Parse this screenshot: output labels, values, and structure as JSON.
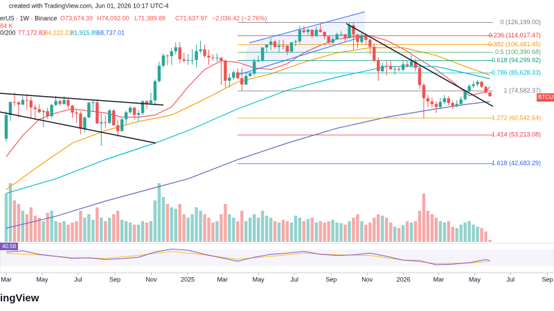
{
  "header": {
    "source_line": "created with TradingView.com, Jun 01, 2026 10:17 UTC-4",
    "symbol": "erUS · 1W · Binance",
    "ohlc": [
      "O73,674.39",
      "H74,092.00",
      "L71,389.88",
      "C71,637.97",
      "−2,036.42 (−2.76%)"
    ],
    "volume": "84 K",
    "ma_label": "0/200",
    "ma_values": [
      "77,172.83",
      "84,222.22",
      "81,915.89",
      "68,737.01"
    ],
    "price_tag": "BTCUSD",
    "logo": "ingView"
  },
  "chart_data": {
    "type": "candlestick",
    "log_scale": true,
    "ylim": [
      23400,
      150000
    ],
    "xlim": [
      -1.5,
      132.5
    ],
    "up_color": "#26a69a",
    "down_color": "#ef5350",
    "xticks": [
      {
        "value": 0,
        "label": "Mar"
      },
      {
        "value": 8.7,
        "label": "May"
      },
      {
        "value": 17.4,
        "label": "Jul"
      },
      {
        "value": 26.3,
        "label": "Sep"
      },
      {
        "value": 35.1,
        "label": "Nov"
      },
      {
        "value": 43.9,
        "label": "2025"
      },
      {
        "value": 52.3,
        "label": "Mar"
      },
      {
        "value": 61,
        "label": "May"
      },
      {
        "value": 69.7,
        "label": "Jul"
      },
      {
        "value": 78.6,
        "label": "Sep"
      },
      {
        "value": 87.3,
        "label": "Nov"
      },
      {
        "value": 96.1,
        "label": "2026"
      },
      {
        "value": 104.6,
        "label": "Mar"
      },
      {
        "value": 113.3,
        "label": "May"
      },
      {
        "value": 122,
        "label": "Jul"
      },
      {
        "value": 130.9,
        "label": "Sep"
      }
    ],
    "candles": [
      [
        51700,
        63900,
        50500,
        62000
      ],
      [
        62000,
        69000,
        59200,
        68500
      ],
      [
        68500,
        73800,
        66500,
        68400
      ],
      [
        68400,
        68900,
        60800,
        67200
      ],
      [
        67200,
        71500,
        66800,
        69600
      ],
      [
        69600,
        72700,
        64500,
        69400
      ],
      [
        69400,
        71300,
        60700,
        65700
      ],
      [
        65700,
        67200,
        59600,
        64900
      ],
      [
        64900,
        67300,
        62800,
        63400
      ],
      [
        63400,
        64700,
        56500,
        63900
      ],
      [
        63900,
        65500,
        60200,
        61500
      ],
      [
        61500,
        67500,
        60600,
        67000
      ],
      [
        67000,
        71900,
        66300,
        69000
      ],
      [
        69000,
        70000,
        66600,
        67500
      ],
      [
        67500,
        71900,
        67200,
        69600
      ],
      [
        69600,
        70200,
        65100,
        66700
      ],
      [
        66700,
        66900,
        60800,
        63200
      ],
      [
        63200,
        64300,
        58400,
        62700
      ],
      [
        62700,
        63800,
        53500,
        55800
      ],
      [
        55800,
        61400,
        54300,
        60800
      ],
      [
        60800,
        68300,
        60600,
        68200
      ],
      [
        68200,
        69400,
        63500,
        68300
      ],
      [
        68300,
        70000,
        58000,
        58100
      ],
      [
        58100,
        62700,
        49000,
        58700
      ],
      [
        58700,
        61800,
        56100,
        58400
      ],
      [
        58400,
        65000,
        57800,
        64200
      ],
      [
        64200,
        64900,
        57200,
        57300
      ],
      [
        57300,
        59800,
        52500,
        54800
      ],
      [
        54800,
        60600,
        54600,
        60000
      ],
      [
        60000,
        64100,
        57500,
        63300
      ],
      [
        63300,
        66500,
        62700,
        65600
      ],
      [
        65600,
        66000,
        59800,
        62100
      ],
      [
        62100,
        64400,
        58900,
        62900
      ],
      [
        62900,
        69400,
        62000,
        68900
      ],
      [
        68900,
        69500,
        65000,
        67900
      ],
      [
        67900,
        73600,
        67500,
        69400
      ],
      [
        69400,
        81500,
        66800,
        80400
      ],
      [
        80400,
        93500,
        79600,
        90500
      ],
      [
        90500,
        99600,
        89400,
        97900
      ],
      [
        97900,
        98800,
        90800,
        97500
      ],
      [
        97500,
        104000,
        91000,
        101200
      ],
      [
        101200,
        108300,
        98800,
        104300
      ],
      [
        104300,
        108400,
        92200,
        95200
      ],
      [
        95200,
        99900,
        92500,
        94100
      ],
      [
        94100,
        98900,
        91200,
        94500
      ],
      [
        94500,
        102700,
        91200,
        94600
      ],
      [
        94600,
        106400,
        89300,
        101300
      ],
      [
        101300,
        109600,
        99500,
        102600
      ],
      [
        102600,
        106400,
        96100,
        97700
      ],
      [
        97700,
        102500,
        91200,
        96500
      ],
      [
        96500,
        98800,
        94100,
        96100
      ],
      [
        96100,
        99500,
        93400,
        96300
      ],
      [
        96300,
        96500,
        78200,
        94200
      ],
      [
        94200,
        95000,
        76600,
        80700
      ],
      [
        80700,
        85300,
        76600,
        82600
      ],
      [
        82600,
        87500,
        81200,
        86100
      ],
      [
        86100,
        88700,
        81600,
        82300
      ],
      [
        82300,
        88500,
        74500,
        78400
      ],
      [
        78400,
        86100,
        78200,
        83700
      ],
      [
        83700,
        86400,
        83100,
        85200
      ],
      [
        85200,
        95700,
        83900,
        93700
      ],
      [
        93700,
        97900,
        92800,
        94300
      ],
      [
        94300,
        104300,
        93400,
        104200
      ],
      [
        104200,
        106700,
        100700,
        106500
      ],
      [
        106500,
        111900,
        102000,
        109000
      ],
      [
        109000,
        110700,
        103100,
        104600
      ],
      [
        104600,
        110500,
        100400,
        105700
      ],
      [
        105700,
        110600,
        102700,
        105600
      ],
      [
        105600,
        106100,
        98200,
        100900
      ],
      [
        100900,
        108500,
        100900,
        108400
      ],
      [
        108400,
        110500,
        105100,
        109200
      ],
      [
        109200,
        123200,
        107500,
        119100
      ],
      [
        119100,
        123000,
        115700,
        117300
      ],
      [
        117300,
        120300,
        114700,
        119400
      ],
      [
        119400,
        119800,
        112000,
        114200
      ],
      [
        114200,
        122300,
        112700,
        119300
      ],
      [
        119300,
        124500,
        116800,
        117400
      ],
      [
        117400,
        117700,
        110600,
        113500
      ],
      [
        113500,
        113600,
        107300,
        108200
      ],
      [
        108200,
        113400,
        107200,
        111100
      ],
      [
        111100,
        116700,
        110600,
        115300
      ],
      [
        115300,
        117900,
        114400,
        115300
      ],
      [
        115300,
        115400,
        108600,
        112200
      ],
      [
        112200,
        125700,
        111500,
        123500
      ],
      [
        123500,
        126200,
        102000,
        115100
      ],
      [
        115100,
        115900,
        103500,
        108600
      ],
      [
        108600,
        116400,
        106700,
        114500
      ],
      [
        114500,
        116400,
        106300,
        110500
      ],
      [
        110500,
        111200,
        98900,
        104700
      ],
      [
        104700,
        107500,
        93000,
        94200
      ],
      [
        94200,
        96600,
        80600,
        86800
      ],
      [
        86800,
        92900,
        86000,
        90400
      ],
      [
        90400,
        94100,
        83800,
        90300
      ],
      [
        90300,
        94500,
        87600,
        88200
      ],
      [
        88200,
        90300,
        84500,
        88400
      ],
      [
        88400,
        90400,
        86500,
        87800
      ],
      [
        87800,
        94800,
        86700,
        91500
      ],
      [
        91500,
        94400,
        89300,
        90500
      ],
      [
        90500,
        97900,
        89900,
        93600
      ],
      [
        93600,
        95500,
        86700,
        89000
      ],
      [
        89000,
        90600,
        75700,
        78000
      ],
      [
        78000,
        79300,
        60500,
        70500
      ],
      [
        70500,
        72300,
        65800,
        68800
      ],
      [
        68800,
        70900,
        65600,
        67500
      ],
      [
        67500,
        68800,
        62900,
        66000
      ],
      [
        66000,
        70600,
        64800,
        68500
      ],
      [
        68500,
        72300,
        67400,
        70500
      ],
      [
        70500,
        71700,
        66700,
        68000
      ],
      [
        68000,
        69200,
        64900,
        66500
      ],
      [
        66500,
        69500,
        65800,
        67500
      ],
      [
        67500,
        71400,
        66900,
        70000
      ],
      [
        70000,
        75400,
        69300,
        74500
      ],
      [
        74500,
        78600,
        73600,
        77500
      ],
      [
        77500,
        80500,
        76200,
        78500
      ],
      [
        78500,
        81200,
        77300,
        80000
      ],
      [
        80000,
        80600,
        76100,
        77000
      ],
      [
        77000,
        77600,
        73000,
        73674.39
      ],
      [
        73674.39,
        74092,
        71389.88,
        71637.97
      ]
    ],
    "volume_lim": [
      0,
      100
    ],
    "volume": [
      70,
      85,
      60,
      55,
      45,
      40,
      50,
      38,
      35,
      30,
      42,
      45,
      30,
      28,
      30,
      25,
      28,
      30,
      45,
      35,
      40,
      32,
      50,
      35,
      30,
      35,
      40,
      45,
      32,
      30,
      28,
      25,
      25,
      30,
      28,
      30,
      60,
      85,
      65,
      55,
      50,
      48,
      55,
      40,
      35,
      40,
      50,
      45,
      40,
      35,
      28,
      30,
      40,
      55,
      40,
      35,
      30,
      45,
      30,
      35,
      40,
      35,
      45,
      38,
      35,
      30,
      28,
      32,
      30,
      28,
      38,
      35,
      30,
      33,
      35,
      28,
      30,
      28,
      30,
      32,
      28,
      27,
      25,
      30,
      35,
      40,
      30,
      25,
      28,
      35,
      40,
      38,
      35,
      28,
      22,
      20,
      24,
      30,
      28,
      30,
      45,
      70,
      45,
      40,
      35,
      30,
      28,
      30,
      22,
      20,
      25,
      28,
      30,
      25,
      22,
      20,
      15,
      3
    ],
    "lines": [
      {
        "color": "#f7525f",
        "x": [
          0,
          4,
          8,
          12,
          16,
          20,
          24,
          28,
          32,
          36,
          40,
          44,
          48,
          52,
          56,
          60,
          64,
          68,
          72,
          76,
          80,
          84,
          88,
          92,
          96,
          100,
          104,
          108,
          112,
          116,
          117
        ],
        "values": [
          45000,
          53000,
          60000,
          63000,
          65000,
          64000,
          63000,
          61000,
          61000,
          62000,
          66000,
          77000,
          88000,
          94000,
          93000,
          89000,
          88000,
          92000,
          100000,
          106000,
          111000,
          113000,
          114000,
          110000,
          103000,
          95000,
          88000,
          80000,
          72000,
          74000,
          77172.83
        ]
      },
      {
        "color": "#ff9800",
        "x": [
          0,
          8,
          16,
          24,
          32,
          40,
          48,
          56,
          64,
          72,
          80,
          88,
          96,
          104,
          112,
          117
        ],
        "values": [
          35000,
          42000,
          50000,
          55000,
          59000,
          62000,
          70000,
          80000,
          85000,
          93000,
          100000,
          104000,
          104000,
          98000,
          89000,
          84222.22
        ]
      },
      {
        "color": "#00bcd4",
        "x": [
          0,
          12,
          24,
          36,
          44,
          56,
          68,
          80,
          92,
          104,
          112,
          117
        ],
        "values": [
          34000,
          38000,
          44000,
          50000,
          55000,
          65000,
          75000,
          83000,
          90000,
          90000,
          85000,
          81915.89
        ]
      },
      {
        "color": "#5c6bc0",
        "x": [
          0,
          12,
          24,
          36,
          44,
          56,
          68,
          80,
          92,
          104,
          112,
          117
        ],
        "values": [
          26000,
          28500,
          32000,
          35500,
          38000,
          44000,
          50000,
          56000,
          61000,
          65000,
          67500,
          68737.01
        ]
      }
    ],
    "fib_levels": [
      {
        "value": 126199,
        "label": "0 (126,199.00)",
        "color": "#787b86"
      },
      {
        "value": 114017.47,
        "label": "0.236 (114,017.47)",
        "color": "#f23645"
      },
      {
        "value": 106481.45,
        "label": "0.382 (106,481.45)",
        "color": "#ff9800"
      },
      {
        "value": 100390.68,
        "label": "0.5 (100,390.68)",
        "color": "#4caf50"
      },
      {
        "value": 94299.92,
        "label": "0.618 (94,299.92)",
        "color": "#089981"
      },
      {
        "value": 85628.33,
        "label": "0.786 (85,628.33)",
        "color": "#00bcd4"
      },
      {
        "value": 74582.37,
        "label": "1 (74,582.37)",
        "color": "#787b86"
      },
      {
        "value": 60542.64,
        "label": "1.272 (60,542.64)",
        "color": "#ff9800"
      },
      {
        "value": 53213.08,
        "label": "1.414 (53,213.08)",
        "color": "#f23645"
      },
      {
        "value": 42683.29,
        "label": "1.618 (42,683.29)",
        "color": "#2962ff"
      }
    ],
    "rsi": {
      "ylim": [
        0,
        100
      ],
      "label": "40.58",
      "color": "#7e57c2",
      "x": [
        0,
        4,
        8,
        12,
        16,
        20,
        24,
        28,
        32,
        36,
        40,
        44,
        48,
        52,
        56,
        60,
        64,
        68,
        72,
        76,
        80,
        84,
        88,
        92,
        96,
        100,
        104,
        108,
        112,
        116,
        117
      ],
      "values": [
        70,
        74,
        62,
        55,
        48,
        50,
        44,
        47,
        52,
        70,
        80,
        76,
        62,
        50,
        38,
        52,
        62,
        66,
        72,
        62,
        58,
        60,
        66,
        55,
        42,
        40,
        26,
        28,
        33,
        44,
        40.58
      ],
      "ma": {
        "color": "#f5c518",
        "x": [
          0,
          8,
          16,
          24,
          32,
          40,
          48,
          56,
          64,
          72,
          80,
          88,
          96,
          104,
          112,
          117
        ],
        "values": [
          65,
          60,
          50,
          48,
          58,
          72,
          60,
          45,
          55,
          66,
          60,
          58,
          42,
          30,
          32,
          38
        ]
      }
    }
  }
}
